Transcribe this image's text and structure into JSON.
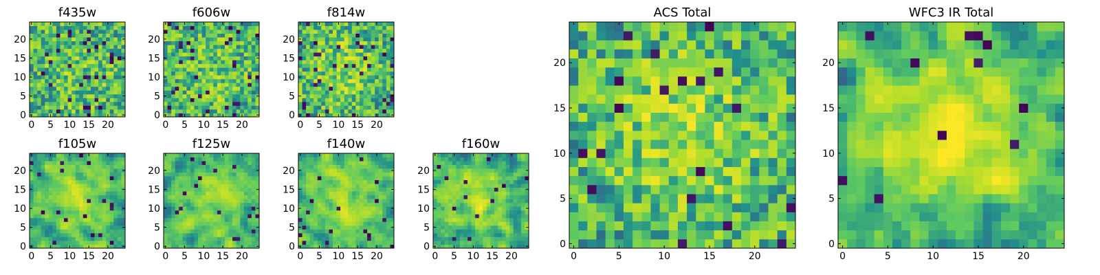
{
  "chart_data": [
    {
      "id": "f435w",
      "type": "heatmap",
      "title": "f435w",
      "size": 25,
      "xlim": [
        0,
        24
      ],
      "ylim": [
        0,
        24
      ],
      "xticks": [
        0,
        5,
        10,
        15,
        20
      ],
      "yticks": [
        0,
        5,
        10,
        15,
        20
      ],
      "seed": 435,
      "smooth": 0,
      "center_boost": 0.08,
      "dark_fraction": 0.05
    },
    {
      "id": "f606w",
      "type": "heatmap",
      "title": "f606w",
      "size": 25,
      "xlim": [
        0,
        24
      ],
      "ylim": [
        0,
        24
      ],
      "xticks": [
        0,
        5,
        10,
        15,
        20
      ],
      "yticks": [
        0,
        5,
        10,
        15,
        20
      ],
      "seed": 606,
      "smooth": 0,
      "center_boost": 0.1,
      "dark_fraction": 0.05
    },
    {
      "id": "f814w",
      "type": "heatmap",
      "title": "f814w",
      "size": 25,
      "xlim": [
        0,
        24
      ],
      "ylim": [
        0,
        24
      ],
      "xticks": [
        0,
        5,
        10,
        15,
        20
      ],
      "yticks": [
        0,
        5,
        10,
        15,
        20
      ],
      "seed": 814,
      "smooth": 0,
      "center_boost": 0.2,
      "dark_fraction": 0.04
    },
    {
      "id": "f105w",
      "type": "heatmap",
      "title": "f105w",
      "size": 25,
      "xlim": [
        0,
        24
      ],
      "ylim": [
        0,
        24
      ],
      "xticks": [
        0,
        5,
        10,
        15,
        20
      ],
      "yticks": [
        0,
        5,
        10,
        15,
        20
      ],
      "seed": 105,
      "smooth": 1,
      "center_boost": 0.25,
      "dark_fraction": 0.03
    },
    {
      "id": "f125w",
      "type": "heatmap",
      "title": "f125w",
      "size": 25,
      "xlim": [
        0,
        24
      ],
      "ylim": [
        0,
        24
      ],
      "xticks": [
        0,
        5,
        10,
        15,
        20
      ],
      "yticks": [
        0,
        5,
        10,
        15,
        20
      ],
      "seed": 125,
      "smooth": 1,
      "center_boost": 0.25,
      "dark_fraction": 0.03
    },
    {
      "id": "f140w",
      "type": "heatmap",
      "title": "f140w",
      "size": 25,
      "xlim": [
        0,
        24
      ],
      "ylim": [
        0,
        24
      ],
      "xticks": [
        0,
        5,
        10,
        15,
        20
      ],
      "yticks": [
        0,
        5,
        10,
        15,
        20
      ],
      "seed": 140,
      "smooth": 1,
      "center_boost": 0.3,
      "dark_fraction": 0.03
    },
    {
      "id": "f160w",
      "type": "heatmap",
      "title": "f160w",
      "size": 25,
      "xlim": [
        0,
        24
      ],
      "ylim": [
        0,
        24
      ],
      "xticks": [
        0,
        5,
        10,
        15,
        20
      ],
      "yticks": [
        0,
        5,
        10,
        15,
        20
      ],
      "seed": 160,
      "smooth": 1,
      "center_boost": 0.35,
      "dark_fraction": 0.02
    },
    {
      "id": "acs-total",
      "type": "heatmap",
      "title": "ACS Total",
      "size": 25,
      "xlim": [
        0,
        24
      ],
      "ylim": [
        0,
        24
      ],
      "xticks": [
        0,
        5,
        10,
        15,
        20
      ],
      "yticks": [
        0,
        5,
        10,
        15,
        20
      ],
      "seed": 777,
      "smooth": 0,
      "center_boost": 0.25,
      "dark_fraction": 0.03
    },
    {
      "id": "wfc3-ir-total",
      "type": "heatmap",
      "title": "WFC3 IR Total",
      "size": 25,
      "xlim": [
        0,
        24
      ],
      "ylim": [
        0,
        24
      ],
      "xticks": [
        0,
        5,
        10,
        15,
        20
      ],
      "yticks": [
        0,
        5,
        10,
        15,
        20
      ],
      "seed": 999,
      "smooth": 1,
      "center_boost": 0.45,
      "dark_fraction": 0.02
    }
  ],
  "colormap": {
    "name": "viridis",
    "stops": [
      "#440154",
      "#3b528b",
      "#21918c",
      "#5ec962",
      "#b5de2b",
      "#fde725"
    ]
  }
}
